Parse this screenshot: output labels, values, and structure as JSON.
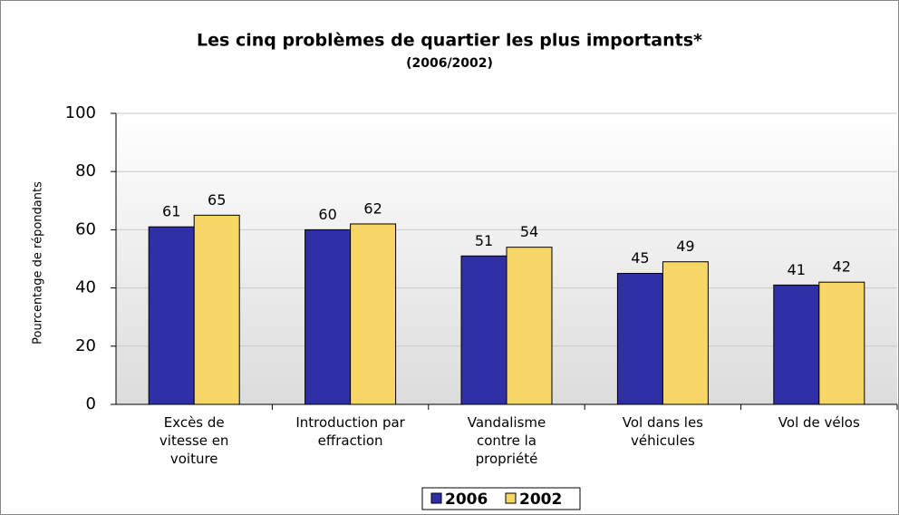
{
  "chart_data": {
    "type": "bar",
    "title": "Les cinq problèmes de quartier les plus importants*",
    "subtitle": "(2006/2002)",
    "y_label": "Pourcentage de répondants",
    "categories": [
      "Excès de\nvitesse en\nvoiture",
      "Introduction par\neffraction",
      "Vandalisme\ncontre la\npropriété",
      "Vol dans les\nvéhicules",
      "Vol de vélos"
    ],
    "series": [
      {
        "name": "2006",
        "color": "#2f2fa8",
        "values": [
          61,
          60,
          51,
          45,
          41
        ]
      },
      {
        "name": "2002",
        "color": "#f6d665",
        "values": [
          65,
          62,
          54,
          49,
          42
        ]
      }
    ],
    "ylim": [
      0,
      100
    ],
    "yticks": [
      0,
      20,
      40,
      60,
      80,
      100
    ],
    "grid": true,
    "legend": "bottom"
  }
}
